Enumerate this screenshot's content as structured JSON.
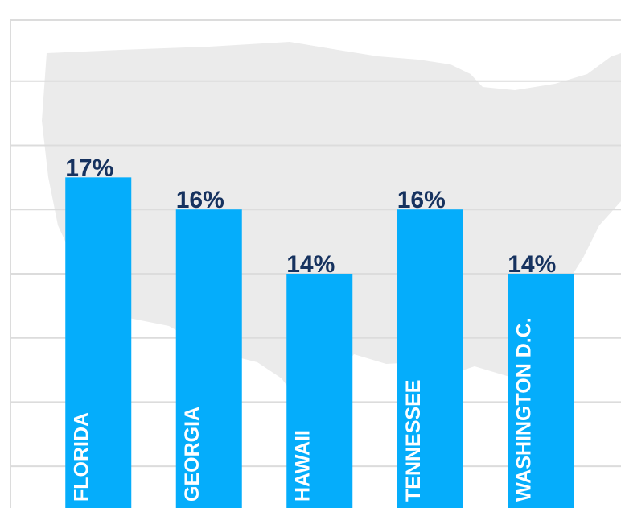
{
  "chart_data": {
    "type": "bar",
    "categories": [
      "FLORIDA",
      "GEORGIA",
      "HAWAII",
      "TENNESSEE",
      "WASHINGTON D.C."
    ],
    "values": [
      17,
      16,
      14,
      16,
      14
    ],
    "value_labels": [
      "17%",
      "16%",
      "14%",
      "16%",
      "14%"
    ],
    "color": "#05adfb",
    "ylim": [
      6.7,
      21.9
    ],
    "yticks": [
      8,
      10,
      12,
      14,
      16,
      18,
      20
    ],
    "grid": true
  }
}
